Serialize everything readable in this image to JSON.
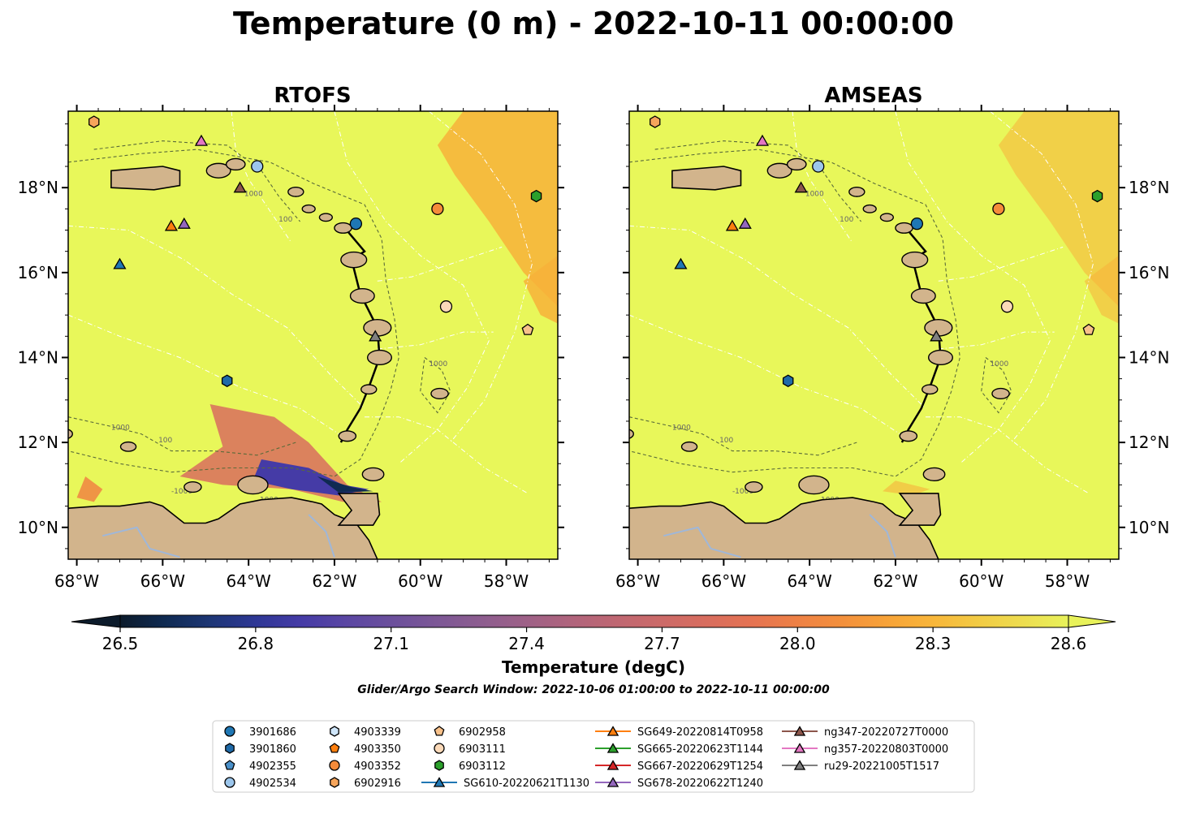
{
  "title": "Temperature (0 m) - 2022-10-11 00:00:00",
  "panels": [
    {
      "name": "RTOFS"
    },
    {
      "name": "AMSEAS"
    }
  ],
  "lon_ticks": [
    "68°W",
    "66°W",
    "64°W",
    "62°W",
    "60°W",
    "58°W"
  ],
  "lat_ticks": [
    "18°N",
    "16°N",
    "14°N",
    "12°N",
    "10°N"
  ],
  "map_extent": {
    "lon": [
      -68.2,
      -56.8
    ],
    "lat": [
      9.25,
      19.8
    ]
  },
  "contour_labels": [
    "1000",
    "100",
    "-1000"
  ],
  "colorbar": {
    "ticks": [
      "26.5",
      "26.8",
      "27.1",
      "27.4",
      "27.7",
      "28.0",
      "28.3",
      "28.6"
    ],
    "range": [
      26.5,
      28.6
    ],
    "extend": "both",
    "cmap": [
      "#0c1b2b",
      "#0f2a52",
      "#1d3675",
      "#2e3795",
      "#453ba6",
      "#5a46a3",
      "#6b4f9c",
      "#7c5796",
      "#8d5d8f",
      "#9e6187",
      "#b0647c",
      "#bf6772",
      "#cc6a68",
      "#d86d5e",
      "#e57352",
      "#ee8145",
      "#f3903c",
      "#f7a338",
      "#f8b63a",
      "#f2cb44",
      "#eddd50",
      "#e8f25a"
    ],
    "label": "Temperature (degC)"
  },
  "search_window": "Glider/Argo Search Window: 2022-10-06 01:00:00 to 2022-10-11 00:00:00",
  "colors": {
    "land": "#d2b48c",
    "ocean_warm": "#e8f75a",
    "water_inland": "#9fb7d9"
  },
  "legend": {
    "argo": [
      {
        "id": "3901686",
        "marker": "circle",
        "color": "#1f77b4",
        "lon": -61.5,
        "lat": 17.15
      },
      {
        "id": "3901860",
        "marker": "hexagon",
        "color": "#1f6aa8",
        "lon": -64.5,
        "lat": 13.45
      },
      {
        "id": "4902355",
        "marker": "pentagon",
        "color": "#4a90c9",
        "lon": null,
        "lat": null
      },
      {
        "id": "4902534",
        "marker": "circle",
        "color": "#9cc6ec",
        "lon": -63.8,
        "lat": 18.5
      },
      {
        "id": "4903339",
        "marker": "hexagon",
        "color": "#cfe6fa",
        "lon": null,
        "lat": null
      },
      {
        "id": "4903350",
        "marker": "pentagon",
        "color": "#ff7f0e",
        "lon": null,
        "lat": null
      },
      {
        "id": "4903352",
        "marker": "circle",
        "color": "#f58b3a",
        "lon": -59.6,
        "lat": 17.5
      },
      {
        "id": "6902916",
        "marker": "hexagon",
        "color": "#f6a55b",
        "lon": -67.6,
        "lat": 19.55
      },
      {
        "id": "6902958",
        "marker": "pentagon",
        "color": "#f8c18a",
        "lon": -57.5,
        "lat": 14.65
      },
      {
        "id": "6903111",
        "marker": "circle",
        "color": "#fbd9b8",
        "lon": -59.4,
        "lat": 15.2
      },
      {
        "id": "6903112",
        "marker": "hexagon",
        "color": "#2ca02c",
        "lon": -57.3,
        "lat": 17.8
      }
    ],
    "gliders": [
      {
        "id": "SG610-20220621T1130",
        "color": "#1f77b4",
        "lon": -67.0,
        "lat": 16.2
      },
      {
        "id": "SG649-20220814T0958",
        "color": "#ff7f0e",
        "lon": -65.8,
        "lat": 17.1
      },
      {
        "id": "SG665-20220623T1144",
        "color": "#2ca02c",
        "lon": null,
        "lat": null
      },
      {
        "id": "SG667-20220629T1254",
        "color": "#d62728",
        "lon": null,
        "lat": null
      },
      {
        "id": "SG678-20220622T1240",
        "color": "#9467bd",
        "lon": -65.5,
        "lat": 17.15
      },
      {
        "id": "ng347-20220727T0000",
        "color": "#8c564b",
        "lon": -64.2,
        "lat": 18.0
      },
      {
        "id": "ng357-20220803T0000",
        "color": "#e377c2",
        "lon": -65.1,
        "lat": 19.1
      },
      {
        "id": "ru29-20221005T1517",
        "color": "#7f7f7f",
        "lon": -61.05,
        "lat": 14.5
      }
    ]
  }
}
